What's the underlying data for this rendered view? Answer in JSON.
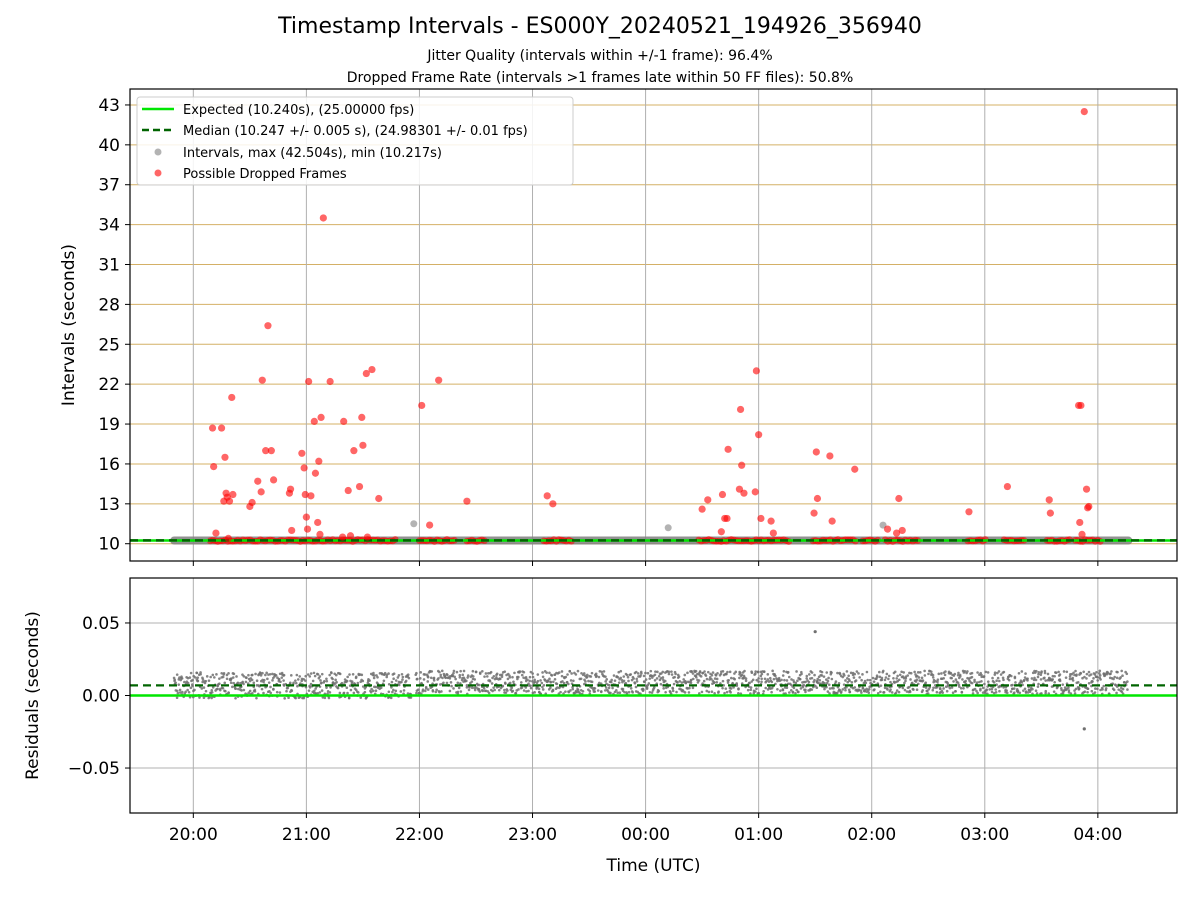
{
  "title": "Timestamp Intervals - ES000Y_20240521_194926_356940",
  "subtitle1": "Jitter Quality (intervals within +/-1 frame): 96.4%",
  "subtitle2": "Dropped Frame Rate (intervals >1 frames late within 50 FF files): 50.8%",
  "colors": {
    "expected": "#00e600",
    "median": "#006400",
    "intervals": "#808080",
    "dropped": "#ff0000",
    "hgrid": "#d4b066",
    "vgrid": "#b0b0b0",
    "residuals": "#707070"
  },
  "chart_data": [
    {
      "type": "scatter",
      "panel": "top",
      "xlabel": "",
      "ylabel": "Intervals (seconds)",
      "x_ticks": [
        "20:00",
        "21:00",
        "22:00",
        "23:00",
        "00:00",
        "01:00",
        "02:00",
        "03:00",
        "04:00"
      ],
      "x_tick_hours": [
        20,
        21,
        22,
        23,
        24,
        25,
        26,
        27,
        28
      ],
      "xlim_hours": [
        19.44,
        28.7
      ],
      "y_ticks": [
        10,
        13,
        16,
        19,
        22,
        25,
        28,
        31,
        34,
        37,
        40,
        43
      ],
      "ylim": [
        8.7,
        44.2
      ],
      "grid": "on",
      "legend_position": "top-left",
      "legend": [
        {
          "label": "Expected (10.240s), (25.00000 fps)",
          "kind": "line"
        },
        {
          "label": "Median (10.247 +/- 0.005 s), (24.98301 +/- 0.01 fps)",
          "kind": "dashed"
        },
        {
          "label": "Intervals, max (42.504s), min (10.217s)",
          "kind": "dot-gray"
        },
        {
          "label": "Possible Dropped Frames",
          "kind": "dot-red"
        }
      ],
      "expected_y": 10.24,
      "median_y": 10.247,
      "intervals_band": {
        "x_start": 19.83,
        "x_end": 28.27,
        "y": 10.24
      },
      "dense_dropped_segments": [
        [
          20.15,
          21.8
        ],
        [
          22.0,
          22.33
        ],
        [
          22.42,
          22.58
        ],
        [
          23.1,
          23.35
        ],
        [
          24.47,
          25.27
        ],
        [
          25.48,
          25.87
        ],
        [
          25.92,
          26.07
        ],
        [
          26.12,
          26.42
        ],
        [
          26.85,
          27.02
        ],
        [
          27.17,
          27.35
        ],
        [
          27.55,
          27.75
        ],
        [
          27.8,
          28.03
        ]
      ],
      "gray_points": [
        [
          21.95,
          11.5
        ],
        [
          24.2,
          11.2
        ],
        [
          26.1,
          11.4
        ]
      ],
      "dropped_points": [
        [
          20.17,
          18.7
        ],
        [
          20.18,
          15.8
        ],
        [
          20.2,
          10.8
        ],
        [
          20.25,
          18.7
        ],
        [
          20.27,
          13.2
        ],
        [
          20.28,
          16.5
        ],
        [
          20.29,
          13.8
        ],
        [
          20.3,
          13.5
        ],
        [
          20.31,
          10.4
        ],
        [
          20.32,
          13.2
        ],
        [
          20.34,
          21.0
        ],
        [
          20.35,
          13.7
        ],
        [
          20.5,
          12.8
        ],
        [
          20.52,
          13.1
        ],
        [
          20.57,
          14.7
        ],
        [
          20.6,
          13.9
        ],
        [
          20.61,
          22.3
        ],
        [
          20.64,
          17.0
        ],
        [
          20.66,
          26.4
        ],
        [
          20.69,
          17.0
        ],
        [
          20.71,
          14.8
        ],
        [
          20.85,
          13.8
        ],
        [
          20.86,
          14.1
        ],
        [
          20.87,
          11.0
        ],
        [
          20.96,
          16.8
        ],
        [
          20.98,
          15.7
        ],
        [
          20.99,
          13.7
        ],
        [
          21.0,
          12.0
        ],
        [
          21.01,
          11.1
        ],
        [
          21.02,
          22.2
        ],
        [
          21.04,
          13.6
        ],
        [
          21.07,
          19.2
        ],
        [
          21.08,
          15.3
        ],
        [
          21.1,
          11.6
        ],
        [
          21.11,
          16.2
        ],
        [
          21.12,
          10.7
        ],
        [
          21.13,
          19.5
        ],
        [
          21.15,
          34.5
        ],
        [
          21.21,
          22.2
        ],
        [
          21.32,
          10.5
        ],
        [
          21.33,
          19.2
        ],
        [
          21.37,
          14.0
        ],
        [
          21.39,
          10.6
        ],
        [
          21.42,
          17.0
        ],
        [
          21.47,
          14.3
        ],
        [
          21.49,
          19.5
        ],
        [
          21.5,
          17.4
        ],
        [
          21.53,
          22.8
        ],
        [
          21.54,
          10.5
        ],
        [
          21.58,
          23.1
        ],
        [
          21.64,
          13.4
        ],
        [
          22.02,
          20.4
        ],
        [
          22.09,
          11.4
        ],
        [
          22.17,
          22.3
        ],
        [
          22.42,
          13.2
        ],
        [
          23.13,
          13.6
        ],
        [
          23.18,
          13.0
        ],
        [
          24.5,
          12.6
        ],
        [
          24.55,
          13.3
        ],
        [
          24.67,
          10.9
        ],
        [
          24.68,
          13.7
        ],
        [
          24.7,
          11.9
        ],
        [
          24.72,
          11.9
        ],
        [
          24.73,
          17.1
        ],
        [
          24.83,
          14.1
        ],
        [
          24.84,
          20.1
        ],
        [
          24.85,
          15.9
        ],
        [
          24.87,
          13.8
        ],
        [
          24.97,
          13.9
        ],
        [
          24.98,
          23.0
        ],
        [
          25.0,
          18.2
        ],
        [
          25.02,
          11.9
        ],
        [
          25.11,
          11.7
        ],
        [
          25.13,
          10.8
        ],
        [
          25.49,
          12.3
        ],
        [
          25.51,
          16.9
        ],
        [
          25.52,
          13.4
        ],
        [
          25.63,
          16.6
        ],
        [
          25.65,
          11.7
        ],
        [
          25.85,
          15.6
        ],
        [
          26.14,
          11.1
        ],
        [
          26.22,
          10.8
        ],
        [
          26.24,
          13.4
        ],
        [
          26.27,
          11.0
        ],
        [
          26.86,
          12.4
        ],
        [
          27.2,
          14.3
        ],
        [
          27.57,
          13.3
        ],
        [
          27.58,
          12.3
        ],
        [
          27.83,
          20.4
        ],
        [
          27.84,
          11.6
        ],
        [
          27.85,
          20.4
        ],
        [
          27.86,
          10.7
        ],
        [
          27.88,
          42.5
        ],
        [
          27.9,
          14.1
        ],
        [
          27.91,
          12.7
        ],
        [
          27.92,
          12.8
        ]
      ]
    },
    {
      "type": "scatter",
      "panel": "bottom",
      "xlabel": "Time (UTC)",
      "ylabel": "Residuals (seconds)",
      "x_ticks": [
        "20:00",
        "21:00",
        "22:00",
        "23:00",
        "00:00",
        "01:00",
        "02:00",
        "03:00",
        "04:00"
      ],
      "x_tick_hours": [
        20,
        21,
        22,
        23,
        24,
        25,
        26,
        27,
        28
      ],
      "xlim_hours": [
        19.44,
        28.7
      ],
      "y_ticks": [
        "0.05",
        "0.00",
        "−0.05"
      ],
      "y_tick_values": [
        0.05,
        0.0,
        -0.05
      ],
      "ylim": [
        -0.081,
        0.081
      ],
      "grid": "on",
      "expected_residual": 0.0,
      "median_residual": 0.007,
      "residual_bands": [
        {
          "x_start": 19.83,
          "x_end": 21.93,
          "y_min": -0.002,
          "y_max": 0.016
        },
        {
          "x_start": 21.97,
          "x_end": 28.27,
          "y_min": 0.001,
          "y_max": 0.017
        }
      ],
      "residual_outliers": [
        [
          25.5,
          0.044
        ],
        [
          27.88,
          -0.023
        ]
      ]
    }
  ]
}
